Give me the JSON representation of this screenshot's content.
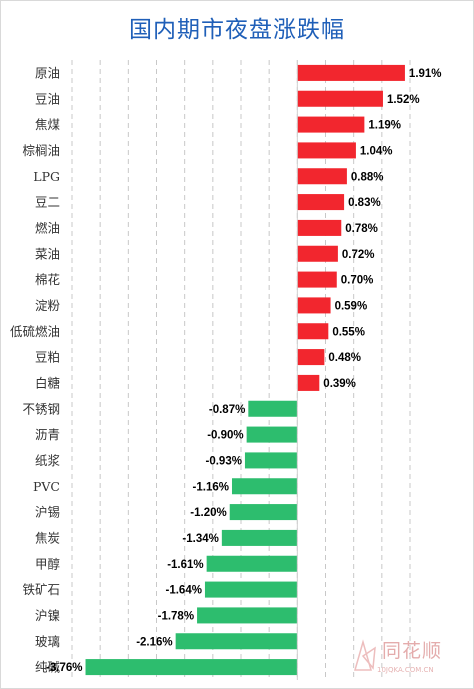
{
  "chart_data": {
    "type": "bar",
    "orientation": "horizontal",
    "title": "国内期市夜盘涨跌幅",
    "categories": [
      "原油",
      "豆油",
      "焦煤",
      "棕榈油",
      "LPG",
      "豆二",
      "燃油",
      "菜油",
      "棉花",
      "淀粉",
      "低硫燃油",
      "豆粕",
      "白糖",
      "不锈钢",
      "沥青",
      "纸浆",
      "PVC",
      "沪锡",
      "焦炭",
      "甲醇",
      "铁矿石",
      "沪镍",
      "玻璃",
      "纯碱"
    ],
    "values": [
      1.91,
      1.52,
      1.19,
      1.04,
      0.88,
      0.83,
      0.78,
      0.72,
      0.7,
      0.59,
      0.55,
      0.48,
      0.39,
      -0.87,
      -0.9,
      -0.93,
      -1.16,
      -1.2,
      -1.34,
      -1.61,
      -1.64,
      -1.78,
      -2.16,
      -3.76
    ],
    "value_labels": [
      "1.91%",
      "1.52%",
      "1.19%",
      "1.04%",
      "0.88%",
      "0.83%",
      "0.78%",
      "0.72%",
      "0.70%",
      "0.59%",
      "0.55%",
      "0.48%",
      "0.39%",
      "-0.87%",
      "-0.90%",
      "-0.93%",
      "-1.16%",
      "-1.20%",
      "-1.34%",
      "-1.61%",
      "-1.64%",
      "-1.78%",
      "-2.16%",
      "-3.76%"
    ],
    "xlim": [
      -4.0,
      2.0
    ],
    "grid": true,
    "colors": {
      "positive": "#f2262e",
      "negative": "#2dbd6e",
      "grid": "#c8c8c8",
      "title": "#1f5fb8"
    }
  },
  "watermark": {
    "text": "同花顺",
    "url": "10JQKA.COM.CN"
  }
}
